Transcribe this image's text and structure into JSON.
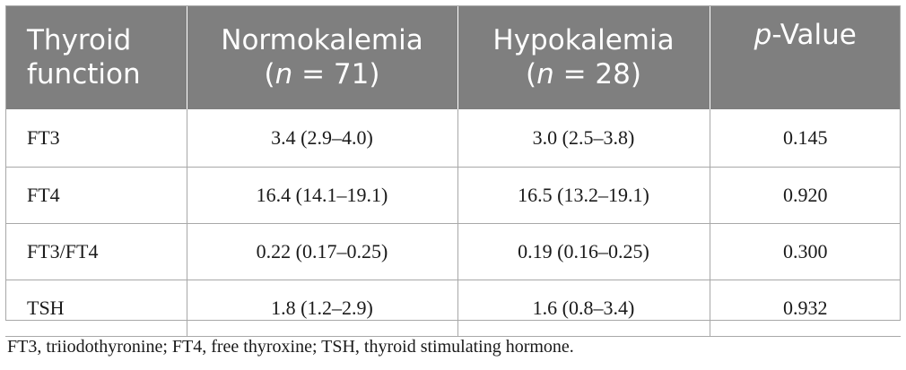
{
  "table": {
    "headers": [
      {
        "line1": "Thyroid",
        "line2": "function"
      },
      {
        "line1": "Normokalemia",
        "line2_italic": "n",
        "line2_rest": " = 71",
        "line2_open": "(",
        "line2_close": ")"
      },
      {
        "line1": "Hypokalemia",
        "line2_italic": "n",
        "line2_rest": " = 28",
        "line2_open": "(",
        "line2_close": ")"
      },
      {
        "italic": "p",
        "rest": "-Value"
      }
    ],
    "rows": [
      [
        "FT3",
        "3.4 (2.9–4.0)",
        "3.0 (2.5–3.8)",
        "0.145"
      ],
      [
        "FT4",
        "16.4 (14.1–19.1)",
        "16.5 (13.2–19.1)",
        "0.920"
      ],
      [
        "FT3/FT4",
        "0.22 (0.17–0.25)",
        "0.19 (0.16–0.25)",
        "0.300"
      ],
      [
        "TSH",
        "1.8 (1.2–2.9)",
        "1.6 (0.8–3.4)",
        "0.932"
      ]
    ]
  },
  "footnote": "FT3, triiodothyronine; FT4, free thyroxine; TSH, thyroid stimulating hormone.",
  "colors": {
    "header_bg": "#7f7f7f",
    "header_text": "#ffffff",
    "rule": "#a8a8a8"
  }
}
